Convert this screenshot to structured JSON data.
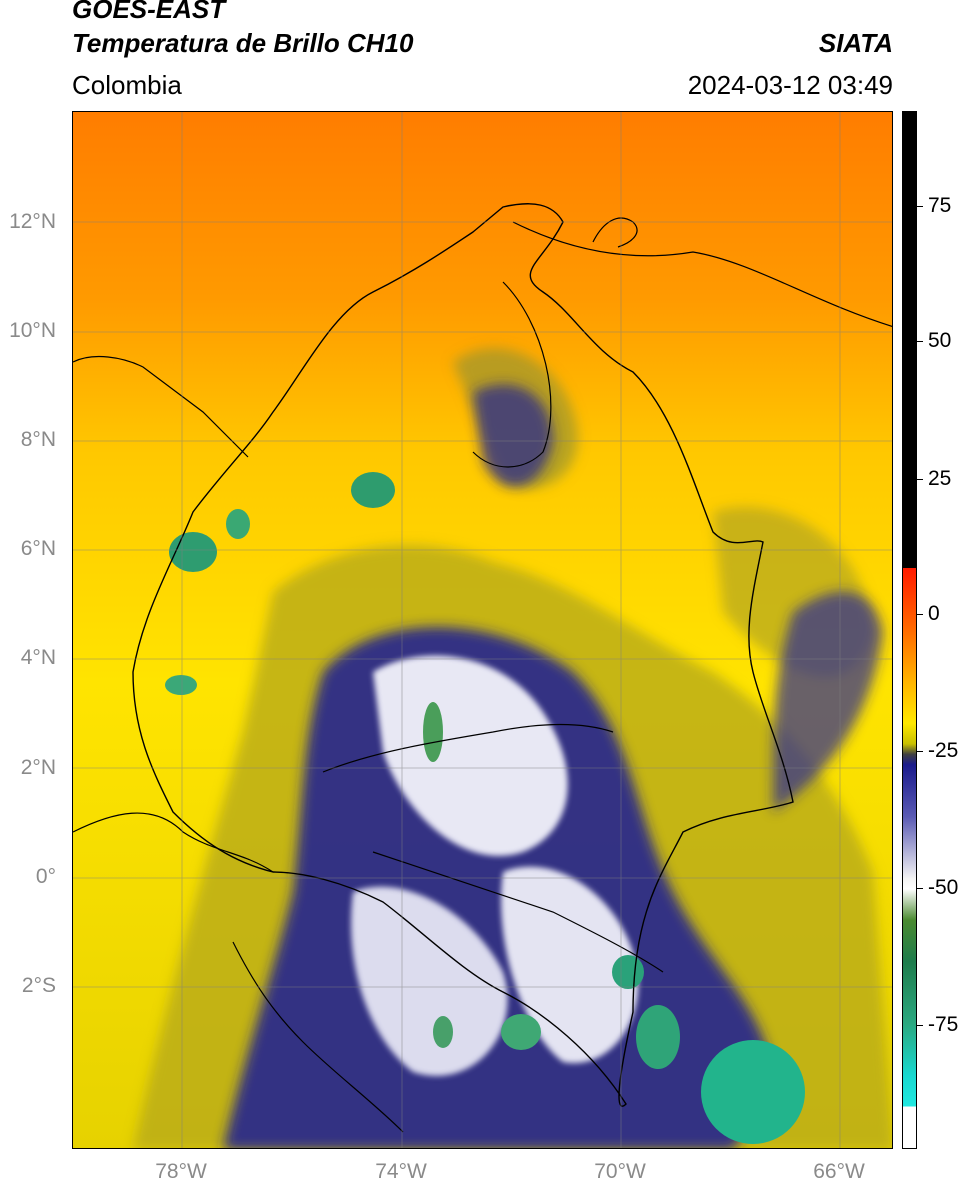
{
  "header": {
    "satellite": "GOES-EAST",
    "product": "Temperatura de Brillo CH10",
    "brand": "SIATA",
    "region": "Colombia",
    "timestamp": "2024-03-12 03:49"
  },
  "map": {
    "lat_ticks": [
      "12°N",
      "10°N",
      "8°N",
      "6°N",
      "4°N",
      "2°N",
      "0°",
      "2°S"
    ],
    "lon_ticks": [
      "78°W",
      "74°W",
      "70°W",
      "66°W"
    ],
    "extent": {
      "lon_min": -80,
      "lon_max": -65,
      "lat_min": -5,
      "lat_max": 14
    }
  },
  "colorbar": {
    "labels": [
      "75",
      "50",
      "25",
      "0",
      "-25",
      "-50",
      "-75"
    ]
  },
  "colors": {
    "warm": "#ff7a00",
    "mid": "#ffd800",
    "cool": "#1a1a8c",
    "cold": "#2aa870",
    "frame": "#000000"
  }
}
